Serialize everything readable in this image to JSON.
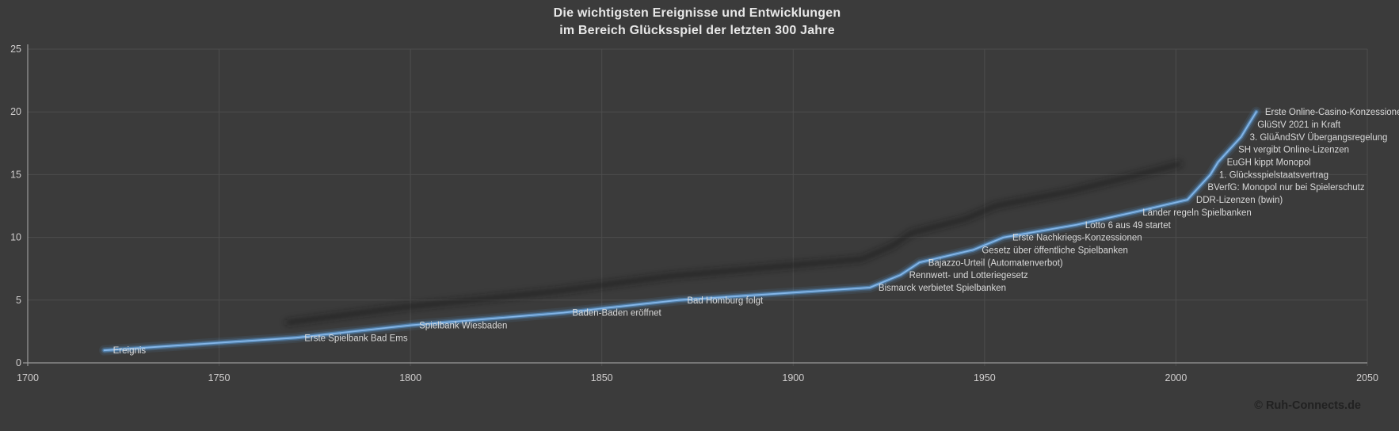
{
  "title": {
    "line1": "Die wichtigsten Ereignisse und Entwicklungen",
    "line2": "im Bereich Glücksspiel der letzten 300 Jahre"
  },
  "watermark": "© Ruh-Connects.de",
  "colors": {
    "background": "#3b3b3b",
    "grid": "#4d4d4d",
    "axis": "#9a9a9a",
    "tick_text": "#d0cece",
    "label_text": "#d9d9d9",
    "line": "#5b9bd5",
    "line_core": "#85b6e8",
    "shadow": "#191919"
  },
  "chart_data": {
    "type": "line",
    "title": "Die wichtigsten Ereignisse und Entwicklungen im Bereich Glücksspiel der letzten 300 Jahre",
    "xlabel": "",
    "ylabel": "",
    "xlim": [
      1700,
      2050
    ],
    "ylim": [
      0,
      25
    ],
    "x_ticks": [
      1700,
      1750,
      1800,
      1850,
      1900,
      1950,
      2000,
      2050
    ],
    "y_ticks": [
      0,
      5,
      10,
      15,
      20,
      25
    ],
    "grid": true,
    "legend_position": "none",
    "series_name": "Ereignis",
    "points": [
      {
        "year": 1720,
        "value": 1,
        "label": "Ereignis"
      },
      {
        "year": 1770,
        "value": 2,
        "label": "Erste Spielbank Bad Ems"
      },
      {
        "year": 1800,
        "value": 3,
        "label": "Spielbank Wiesbaden"
      },
      {
        "year": 1840,
        "value": 4,
        "label": "Baden-Baden eröffnet"
      },
      {
        "year": 1870,
        "value": 5,
        "label": "Bad Homburg folgt"
      },
      {
        "year": 1920,
        "value": 6,
        "label": "Bismarck verbietet Spielbanken"
      },
      {
        "year": 1928,
        "value": 7,
        "label": "Rennwett- und Lotteriegesetz"
      },
      {
        "year": 1933,
        "value": 8,
        "label": "Bajazzo-Urteil (Automatenverbot)"
      },
      {
        "year": 1947,
        "value": 9,
        "label": "Gesetz über öffentliche Spielbanken"
      },
      {
        "year": 1955,
        "value": 10,
        "label": "Erste Nachkriegs-Konzessionen"
      },
      {
        "year": 1974,
        "value": 11,
        "label": "Lotto 6 aus 49 startet"
      },
      {
        "year": 1989,
        "value": 12,
        "label": "Länder regeln Spielbanken"
      },
      {
        "year": 2003,
        "value": 13,
        "label": "DDR-Lizenzen (bwin)"
      },
      {
        "year": 2006,
        "value": 14,
        "label": "BVerfG: Monopol nur bei Spielerschutz"
      },
      {
        "year": 2009,
        "value": 15,
        "label": "1. Glücksspielstaatsvertrag"
      },
      {
        "year": 2011,
        "value": 16,
        "label": "EuGH kippt Monopol"
      },
      {
        "year": 2014,
        "value": 17,
        "label": "SH vergibt Online-Lizenzen"
      },
      {
        "year": 2017,
        "value": 18,
        "label": "3. GlüÄndStV Übergangsregelung"
      },
      {
        "year": 2019,
        "value": 19,
        "label": "GlüStV 2021 in Kraft"
      },
      {
        "year": 2021,
        "value": 20,
        "label": "Erste Online-Casino-Konzessionen"
      }
    ]
  }
}
